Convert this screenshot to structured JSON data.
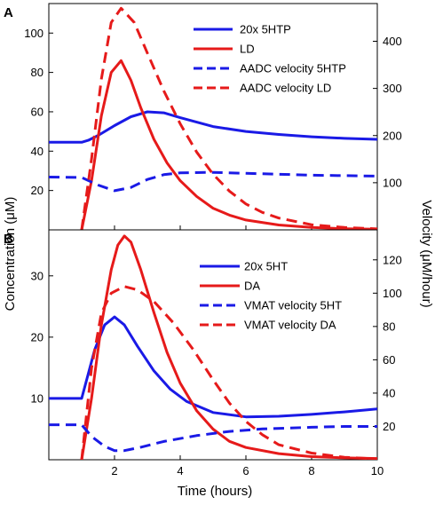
{
  "colors": {
    "blue": "#1a1ae6",
    "red": "#e61a1a",
    "axis": "#000000"
  },
  "chart_data": [
    {
      "panel": "A",
      "type": "line",
      "xlabel": "Time (hours)",
      "ylabel_left": "Concentration (μM)",
      "ylabel_right": "Velocity (μM/hour)",
      "xlim": [
        0,
        10
      ],
      "ylim_left": [
        0,
        115
      ],
      "ylim_right": [
        0,
        480
      ],
      "left_ticks": [
        "20",
        "40",
        "60",
        "80",
        "100"
      ],
      "right_ticks": [
        "100",
        "200",
        "300",
        "400"
      ],
      "x_ticks": [
        "2",
        "4",
        "6",
        "8",
        "10"
      ],
      "legend_position": "top-right",
      "grid": false,
      "series": [
        {
          "name": "20x 5HTP",
          "axis": "left",
          "color": "#1a1ae6",
          "dash": false,
          "x": [
            0,
            1,
            1.2,
            1.5,
            2,
            2.5,
            3,
            3.5,
            4,
            5,
            6,
            7,
            8,
            9,
            10
          ],
          "y": [
            44.5,
            44.5,
            45.5,
            48,
            53,
            57.5,
            60,
            59.5,
            57,
            52.5,
            50,
            48.5,
            47.3,
            46.5,
            46
          ]
        },
        {
          "name": "LD",
          "axis": "left",
          "color": "#e61a1a",
          "dash": false,
          "x": [
            1,
            1.3,
            1.6,
            1.9,
            2.2,
            2.5,
            2.8,
            3.2,
            3.6,
            4,
            4.5,
            5,
            5.5,
            6,
            7,
            8,
            9,
            10
          ],
          "y": [
            0,
            25,
            58,
            80,
            86,
            76,
            62,
            46,
            34,
            25,
            17,
            11,
            7.5,
            5,
            2.5,
            1.2,
            0.6,
            0.3
          ]
        },
        {
          "name": "AADC velocity 5HTP",
          "axis": "right",
          "color": "#1a1ae6",
          "dash": true,
          "x": [
            0,
            1,
            1.5,
            2,
            2.5,
            3,
            3.5,
            4,
            5,
            6,
            7,
            8,
            9,
            10
          ],
          "y": [
            112,
            111,
            95,
            83,
            90,
            107,
            117,
            121,
            122,
            120,
            118,
            116,
            115,
            114
          ]
        },
        {
          "name": "AADC velocity LD",
          "axis": "right",
          "color": "#e61a1a",
          "dash": true,
          "x": [
            1,
            1.3,
            1.6,
            1.9,
            2.2,
            2.6,
            3,
            3.5,
            4,
            4.5,
            5,
            5.5,
            6,
            6.5,
            7,
            8,
            9,
            10
          ],
          "y": [
            0,
            150,
            320,
            440,
            470,
            440,
            375,
            295,
            225,
            165,
            118,
            82,
            55,
            37,
            25,
            11,
            5,
            2
          ]
        }
      ]
    },
    {
      "panel": "B",
      "type": "line",
      "xlabel": "Time (hours)",
      "ylabel_left": "Concentration (μM)",
      "ylabel_right": "Velocity (μM/hour)",
      "xlim": [
        0,
        10
      ],
      "ylim_left": [
        0,
        37.5
      ],
      "ylim_right": [
        0,
        138
      ],
      "left_ticks": [
        "10",
        "20",
        "30"
      ],
      "right_ticks": [
        "20",
        "40",
        "60",
        "80",
        "100",
        "120"
      ],
      "x_ticks": [
        "2",
        "4",
        "6",
        "8",
        "10"
      ],
      "legend_position": "top-right",
      "grid": false,
      "series": [
        {
          "name": "20x 5HT",
          "axis": "left",
          "color": "#1a1ae6",
          "dash": false,
          "x": [
            0,
            1,
            1.1,
            1.4,
            1.7,
            2,
            2.3,
            2.7,
            3.2,
            3.7,
            4.2,
            5,
            6,
            7,
            8,
            9,
            10
          ],
          "y": [
            10,
            10,
            12,
            18,
            22,
            23.3,
            22,
            18.5,
            14.5,
            11.5,
            9.5,
            7.7,
            7,
            7.1,
            7.4,
            7.8,
            8.3
          ]
        },
        {
          "name": "DA",
          "axis": "left",
          "color": "#e61a1a",
          "dash": false,
          "x": [
            1,
            1.3,
            1.6,
            1.9,
            2.1,
            2.3,
            2.5,
            2.8,
            3.2,
            3.6,
            4,
            4.5,
            5,
            5.5,
            6,
            7,
            8,
            9,
            10
          ],
          "y": [
            0,
            10,
            22,
            31,
            35,
            36.5,
            35.5,
            31,
            24,
            17.5,
            12.5,
            8,
            5,
            3,
            2,
            1,
            0.5,
            0.3,
            0.2
          ]
        },
        {
          "name": "VMAT velocity 5HT",
          "axis": "right",
          "color": "#1a1ae6",
          "dash": true,
          "x": [
            0,
            1,
            1.3,
            1.7,
            2,
            2.3,
            2.8,
            3.5,
            4.5,
            5.5,
            6.5,
            8,
            9,
            10
          ],
          "y": [
            21,
            21,
            14,
            8,
            5.5,
            5.5,
            7.5,
            11,
            14.5,
            17,
            18.5,
            19.5,
            20,
            20
          ]
        },
        {
          "name": "VMAT velocity DA",
          "axis": "right",
          "color": "#e61a1a",
          "dash": true,
          "x": [
            1,
            1.3,
            1.6,
            1.9,
            2.3,
            2.7,
            3.2,
            3.8,
            4.4,
            5,
            5.5,
            6,
            6.5,
            7,
            8,
            9,
            10
          ],
          "y": [
            0,
            55,
            88,
            100,
            104,
            102,
            95,
            82,
            66,
            48,
            34,
            23,
            15,
            9,
            4,
            1.5,
            0.5
          ]
        }
      ]
    }
  ]
}
